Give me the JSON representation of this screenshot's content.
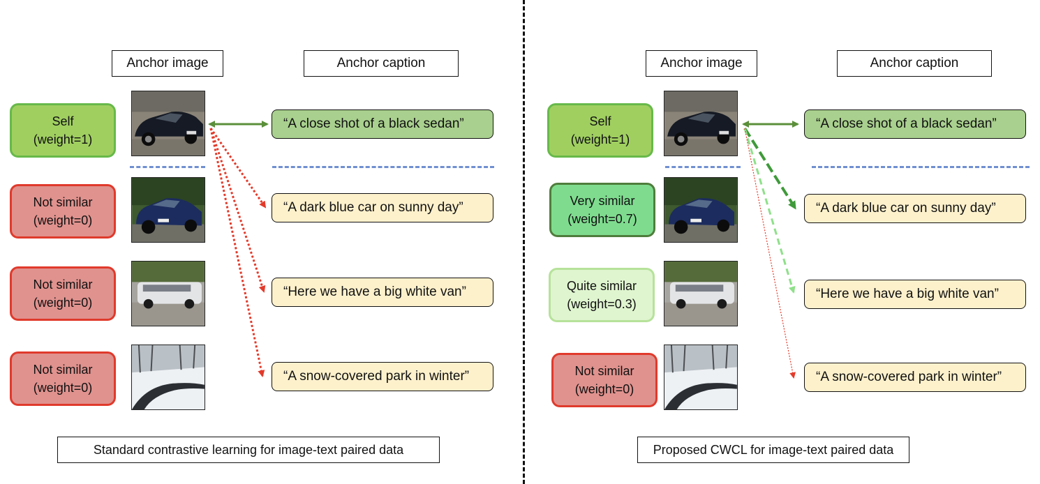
{
  "left": {
    "anchor_image_label": "Anchor image",
    "anchor_caption_label": "Anchor caption",
    "rows": [
      {
        "weight_line1": "Self",
        "weight_line2": "(weight=1)",
        "caption": "“A close shot of a black sedan”",
        "image": "black-sedan-photo"
      },
      {
        "weight_line1": "Not similar",
        "weight_line2": "(weight=0)",
        "caption": "“A dark blue car on sunny day”",
        "image": "blue-car-photo"
      },
      {
        "weight_line1": "Not similar",
        "weight_line2": "(weight=0)",
        "caption": "“Here we have a big white van”",
        "image": "white-van-photo"
      },
      {
        "weight_line1": "Not similar",
        "weight_line2": "(weight=0)",
        "caption": "“A snow-covered park in winter”",
        "image": "snow-park-photo"
      }
    ],
    "footer": "Standard contrastive learning for image-text paired data"
  },
  "right": {
    "anchor_image_label": "Anchor image",
    "anchor_caption_label": "Anchor caption",
    "rows": [
      {
        "weight_line1": "Self",
        "weight_line2": "(weight=1)",
        "caption": "“A close shot of a black sedan”",
        "image": "black-sedan-photo"
      },
      {
        "weight_line1": "Very similar",
        "weight_line2": "(weight=0.7)",
        "caption": "“A dark blue car on sunny day”",
        "image": "blue-car-photo"
      },
      {
        "weight_line1": "Quite similar",
        "weight_line2": "(weight=0.3)",
        "caption": "“Here we have a big white van”",
        "image": "white-van-photo"
      },
      {
        "weight_line1": "Not similar",
        "weight_line2": "(weight=0)",
        "caption": "“A snow-covered park in winter”",
        "image": "snow-park-photo"
      }
    ],
    "footer": "Proposed CWCL for image-text paired data"
  },
  "colors": {
    "self_fill": "#a0cf60",
    "very_similar_fill": "#7fdc8f",
    "quite_similar_fill": "#dff5cf",
    "not_similar_fill": "#e0928e",
    "not_similar_border": "#e03a2c",
    "positive_caption_fill": "#a9d08e",
    "caption_fill": "#fdf1cc",
    "arrow_green_dark": "#4e9a3a",
    "arrow_green_light": "#8fe08a",
    "arrow_red": "#e33a2a",
    "separator_blue": "#6f8fd0"
  }
}
